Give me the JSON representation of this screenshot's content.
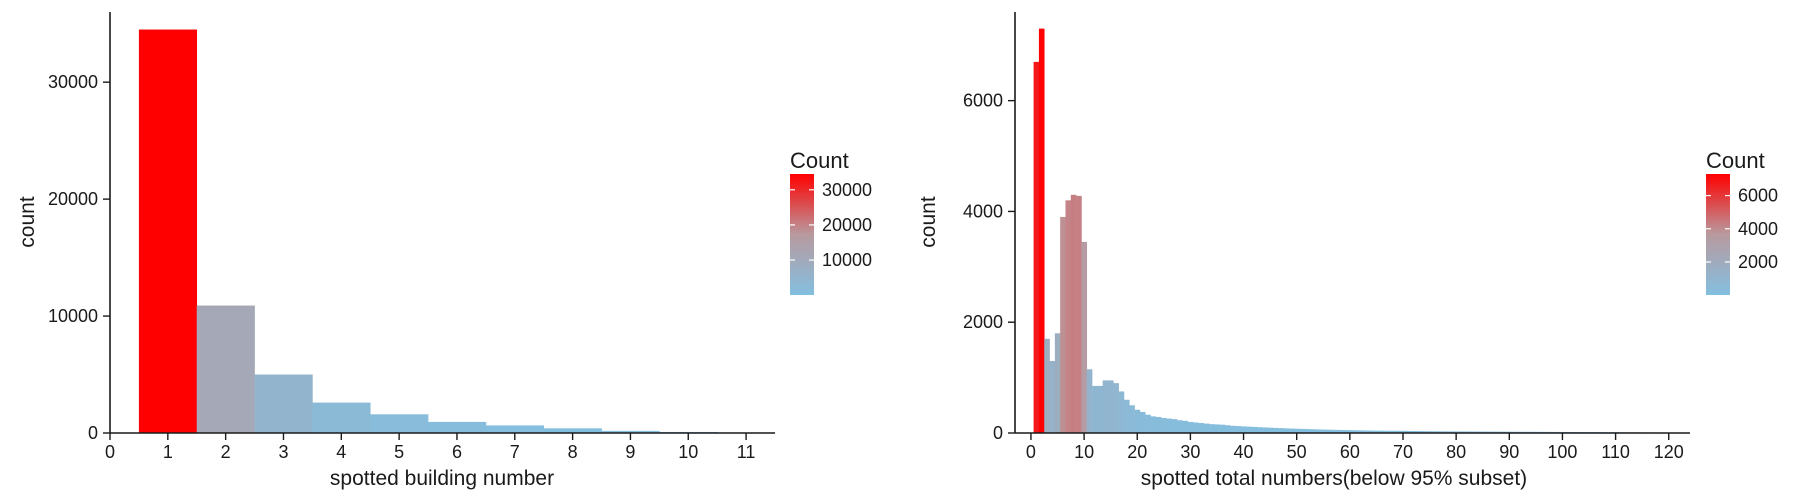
{
  "colors": {
    "high": "#ff0000",
    "mid": "#b89a9f",
    "low": "#83bfe0",
    "axis": "#1a1a1a"
  },
  "chart_data": [
    {
      "type": "bar",
      "title": "",
      "xlabel": "spotted building number",
      "ylabel": "count",
      "x": [
        1,
        2,
        3,
        4,
        5,
        6,
        7,
        8,
        9,
        10,
        11
      ],
      "values": [
        34500,
        10900,
        5000,
        2600,
        1600,
        950,
        650,
        400,
        180,
        90,
        50
      ],
      "xlim": [
        0,
        11.5
      ],
      "ylim": [
        0,
        36000
      ],
      "xticks": [
        "0",
        "1",
        "2",
        "3",
        "4",
        "5",
        "6",
        "7",
        "8",
        "9",
        "10",
        "11"
      ],
      "yticks": [
        "0",
        "10000",
        "20000",
        "30000"
      ],
      "grid": false,
      "legend": {
        "title": "Count",
        "position": "right",
        "labels": [
          "30000",
          "20000",
          "10000"
        ],
        "label_values": [
          30000,
          20000,
          10000
        ],
        "range": [
          50,
          34500
        ]
      }
    },
    {
      "type": "bar",
      "title": "",
      "xlabel": "spotted total numbers(below 95% subset)",
      "ylabel": "count",
      "x": [
        1,
        2,
        3,
        4,
        5,
        6,
        7,
        8,
        9,
        10,
        11,
        12,
        13,
        14,
        15,
        16,
        17,
        18,
        19,
        20,
        21,
        22,
        23,
        24,
        25,
        26,
        27,
        28,
        29,
        30,
        31,
        32,
        33,
        34,
        35,
        36,
        37,
        38,
        39,
        40,
        41,
        42,
        43,
        44,
        45,
        46,
        47,
        48,
        49,
        50,
        51,
        52,
        53,
        54,
        55,
        56,
        57,
        58,
        59,
        60,
        61,
        62,
        63,
        64,
        65,
        66,
        67,
        68,
        69,
        70,
        71,
        72,
        73,
        74,
        75,
        76,
        77,
        78,
        79,
        80,
        81,
        82,
        83,
        84,
        85,
        86,
        87,
        88,
        89,
        90,
        91,
        92,
        93,
        94,
        95,
        96,
        97,
        98,
        99,
        100,
        101,
        102,
        103,
        104,
        105,
        106,
        107,
        108,
        109,
        110,
        111,
        112,
        113,
        114,
        115,
        116,
        117,
        118,
        119
      ],
      "values": [
        6700,
        7300,
        1700,
        1300,
        1800,
        3900,
        4200,
        4300,
        4280,
        3450,
        1150,
        850,
        850,
        950,
        950,
        900,
        750,
        600,
        500,
        420,
        380,
        330,
        300,
        290,
        270,
        260,
        250,
        230,
        220,
        200,
        190,
        180,
        170,
        160,
        155,
        150,
        140,
        130,
        125,
        120,
        115,
        110,
        105,
        100,
        96,
        92,
        88,
        84,
        80,
        77,
        74,
        71,
        68,
        65,
        62,
        60,
        58,
        56,
        54,
        52,
        50,
        48,
        46,
        44,
        43,
        42,
        41,
        40,
        39,
        38,
        37,
        36,
        35,
        34,
        33,
        32,
        31,
        30,
        29,
        29,
        28,
        28,
        27,
        27,
        26,
        26,
        25,
        25,
        24,
        24,
        23,
        23,
        22,
        22,
        21,
        21,
        20,
        20,
        19,
        19,
        18,
        18,
        17,
        17,
        16,
        16,
        15,
        15,
        14,
        14,
        13,
        13,
        12,
        12,
        11,
        11,
        10,
        10,
        9
      ],
      "xlim": [
        -3,
        124
      ],
      "ylim": [
        0,
        7600
      ],
      "xticks": [
        "0",
        "10",
        "20",
        "30",
        "40",
        "50",
        "60",
        "70",
        "80",
        "90",
        "100",
        "110",
        "120"
      ],
      "yticks": [
        "0",
        "2000",
        "4000",
        "6000"
      ],
      "grid": false,
      "legend": {
        "title": "Count",
        "position": "right",
        "labels": [
          "6000",
          "4000",
          "2000"
        ],
        "label_values": [
          6000,
          4000,
          2000
        ],
        "range": [
          9,
          7300
        ]
      }
    }
  ]
}
